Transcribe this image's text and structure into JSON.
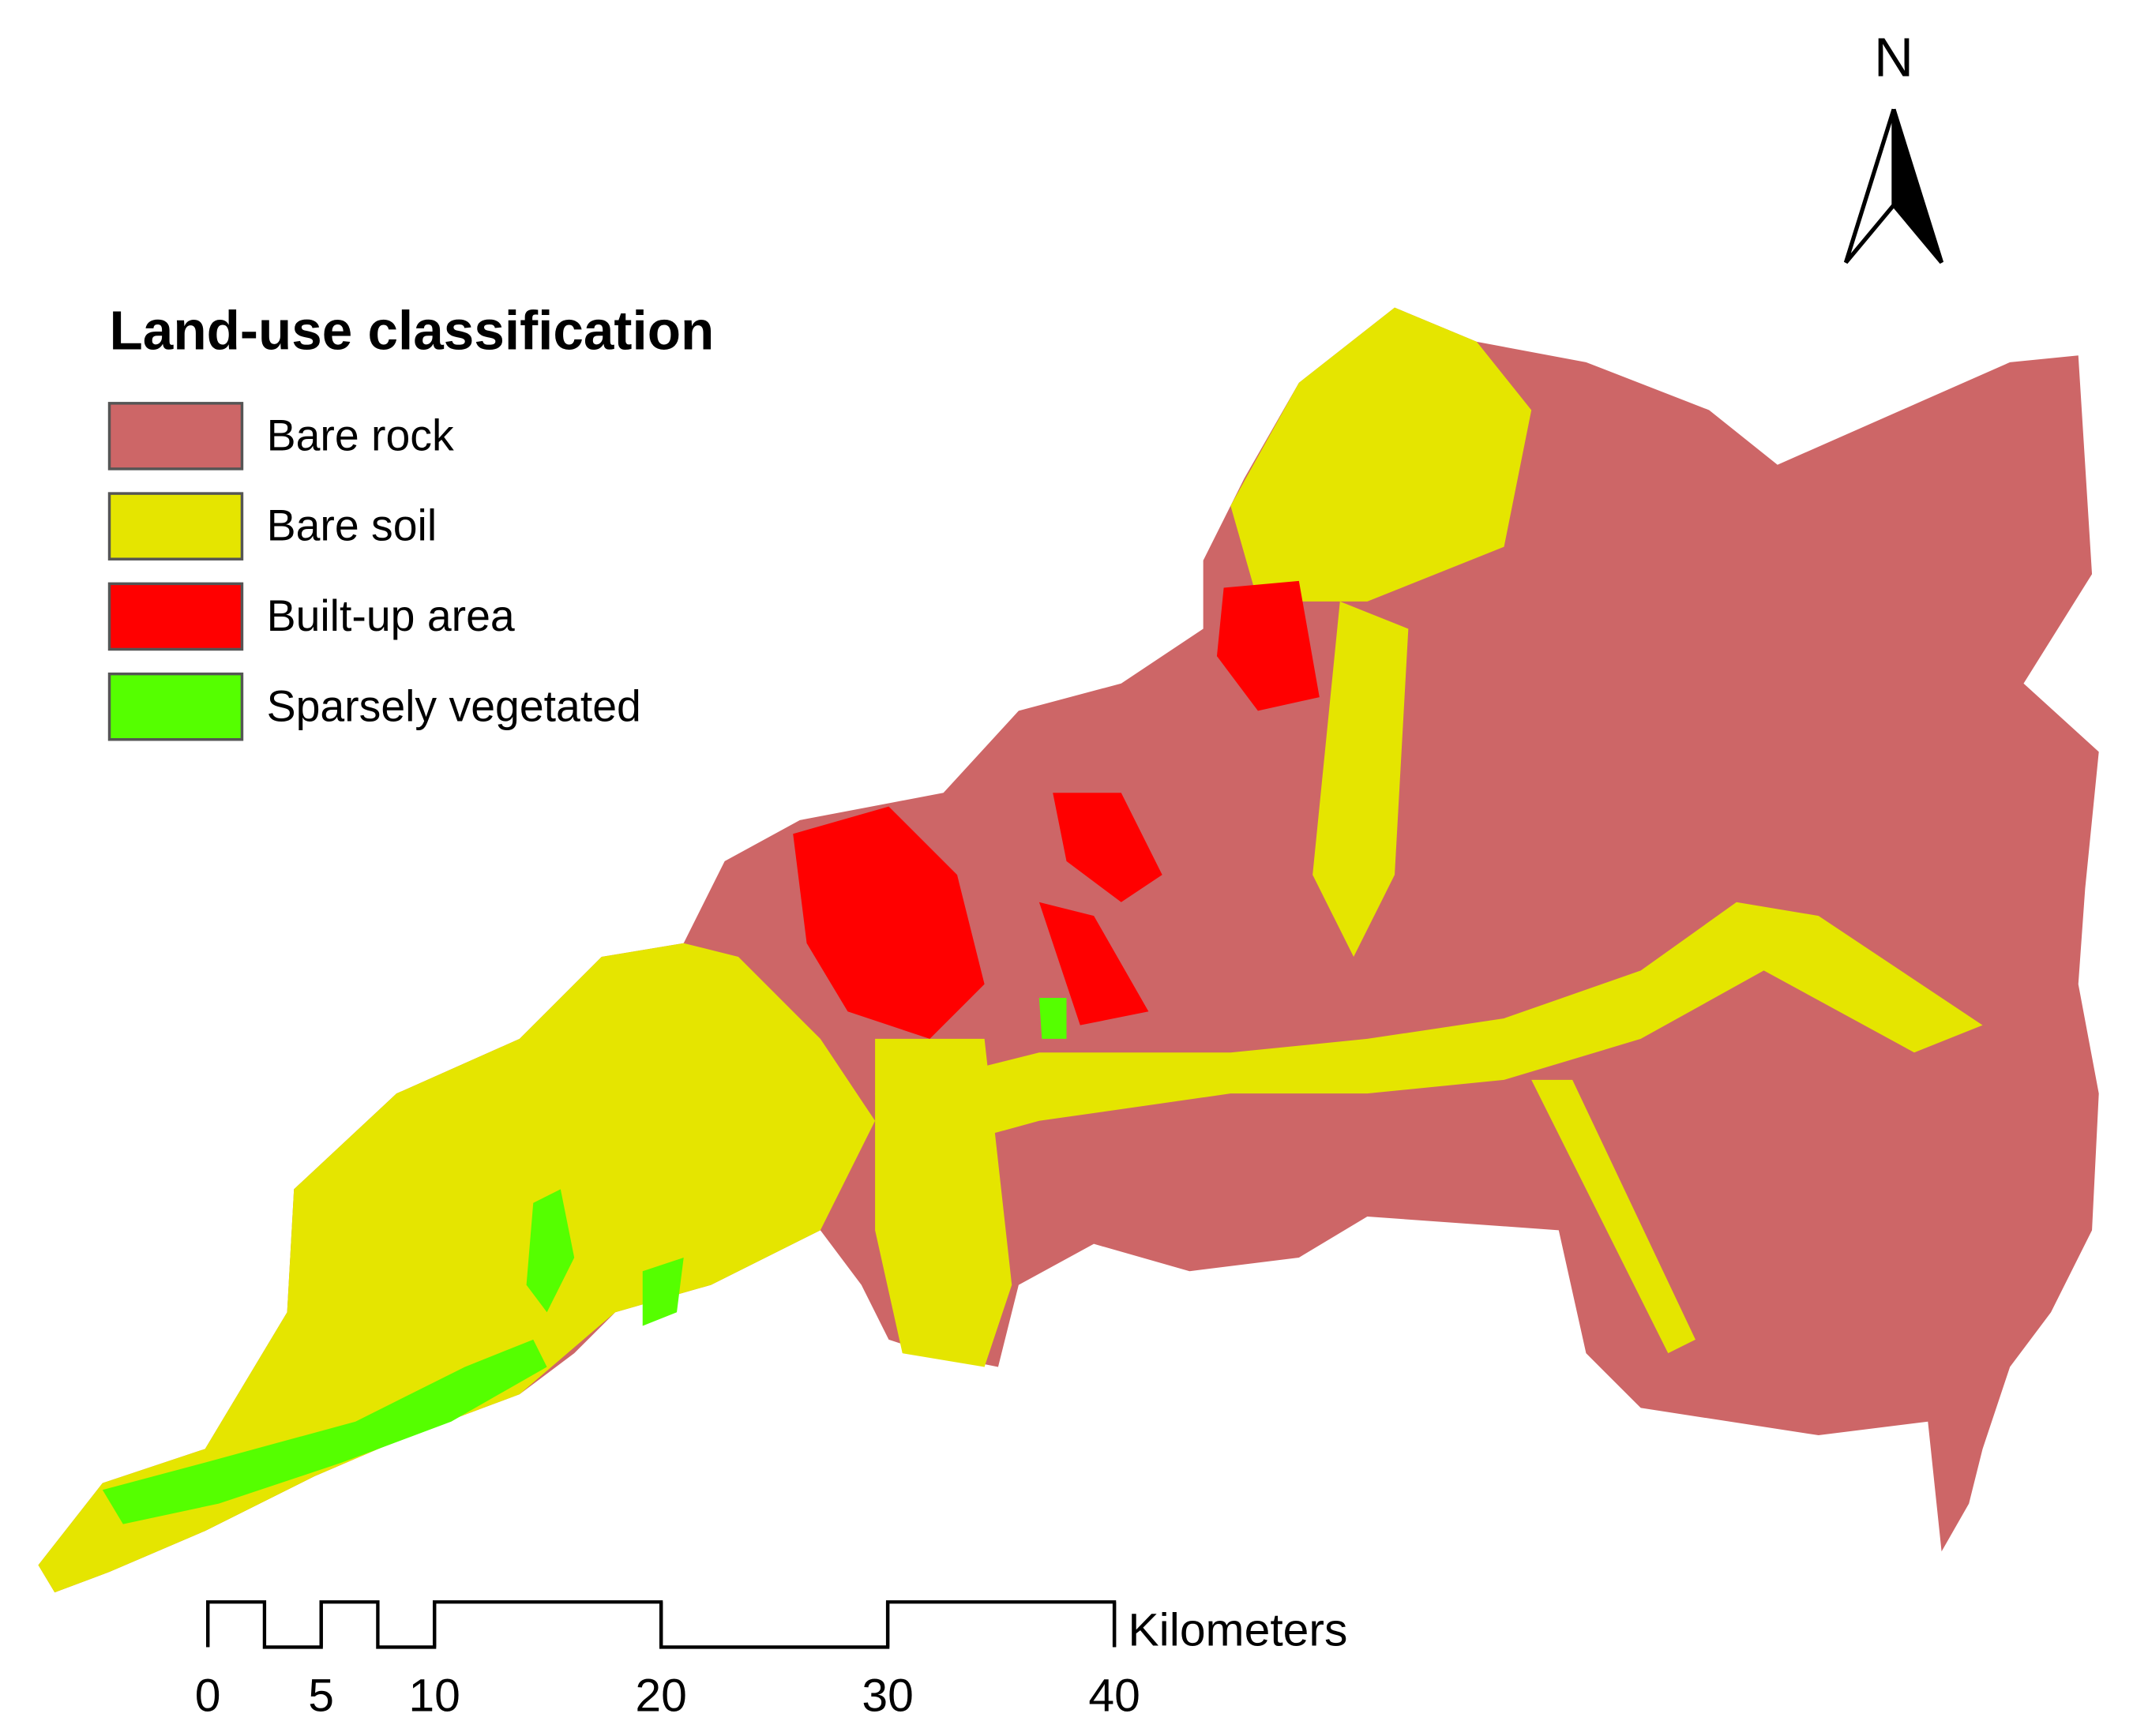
{
  "legend": {
    "title": "Land-use classification",
    "items": [
      {
        "label": "Bare rock",
        "color": "#cd6667"
      },
      {
        "label": "Bare soil",
        "color": "#e5e500"
      },
      {
        "label": "Built-up area",
        "color": "#ff0000"
      },
      {
        "label": "Sparsely vegetated",
        "color": "#55ff00"
      }
    ]
  },
  "north_arrow": {
    "label": "N"
  },
  "scale_bar": {
    "unit": "Kilometers",
    "ticks": [
      0,
      5,
      10,
      20,
      30,
      40
    ]
  }
}
